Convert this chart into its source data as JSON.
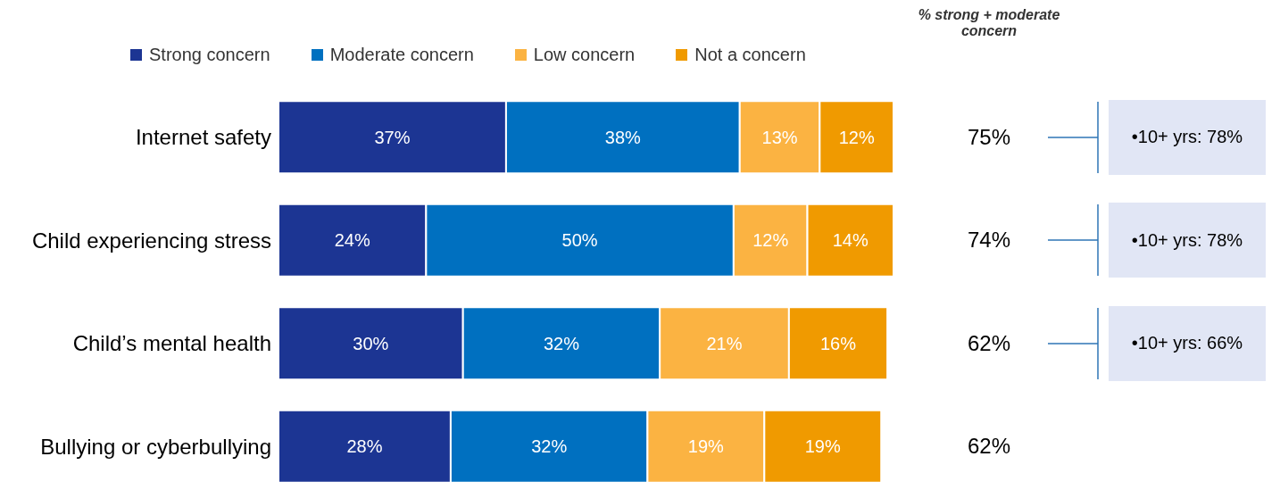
{
  "chart_data": {
    "type": "bar",
    "orientation": "horizontal",
    "stacked": true,
    "legend": "top",
    "categories": [
      "Internet safety",
      "Child experiencing stress",
      "Child’s mental health",
      "Bullying or cyberbullying"
    ],
    "series": [
      {
        "name": "Strong concern",
        "color": "#1c3593",
        "values": [
          37,
          24,
          30,
          28
        ],
        "value_labels": [
          "37%",
          "24%",
          "30%",
          "28%"
        ]
      },
      {
        "name": "Moderate concern",
        "color": "#0070c0",
        "values": [
          38,
          50,
          32,
          32
        ],
        "value_labels": [
          "38%",
          "50%",
          "32%",
          "32%"
        ]
      },
      {
        "name": "Low concern",
        "color": "#fbb342",
        "values": [
          13,
          12,
          21,
          19
        ],
        "value_labels": [
          "13%",
          "12%",
          "21%",
          "19%"
        ]
      },
      {
        "name": "Not a concern",
        "color": "#f09a00",
        "values": [
          12,
          14,
          16,
          19
        ],
        "value_labels": [
          "12%",
          "14%",
          "16%",
          "19%"
        ]
      }
    ],
    "annotations": [
      "% strong + moderate concern",
      "75%",
      "74%",
      "62%",
      "62%",
      "•10+ yrs: 78%",
      "•10+ yrs: 78%",
      "•10+ yrs: 66%"
    ]
  }
}
